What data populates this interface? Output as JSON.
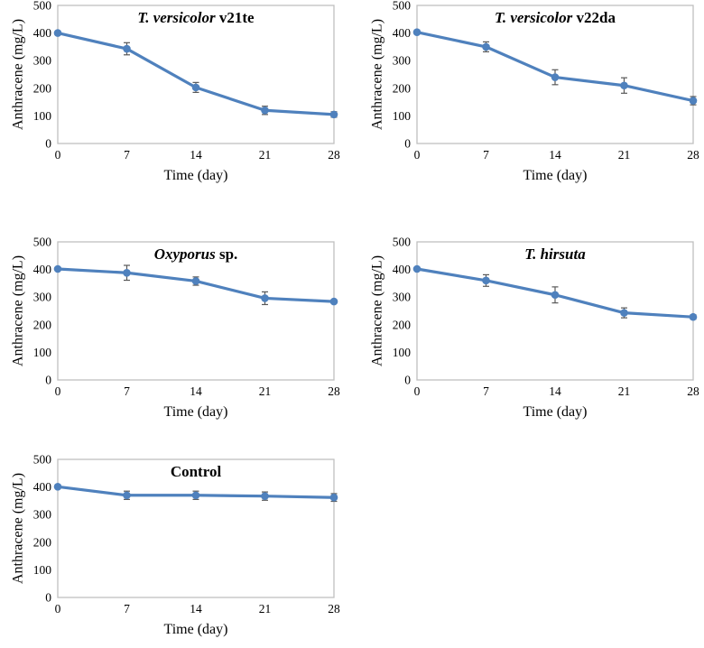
{
  "figure": {
    "description": "Anthracene degradation time-course panels",
    "colors": {
      "series_line": "#4F81BD",
      "marker_fill": "#4F81BD",
      "error_bar": "#595959",
      "axis_border": "#BFBFBF",
      "text": "#000000",
      "background": "#ffffff"
    },
    "shared": {
      "xlabel": "Time (day)",
      "ylabel": "Anthracene  (mg/L)",
      "x_ticks": [
        "0",
        "7",
        "14",
        "21",
        "28"
      ],
      "y_ticks": [
        "0",
        "100",
        "200",
        "300",
        "400",
        "500"
      ]
    }
  },
  "chart_data": [
    {
      "type": "line",
      "title": "T. versicolor v21te",
      "title_italic": "T. versicolor",
      "title_regular": " v21te",
      "x": [
        0,
        7,
        14,
        21,
        28
      ],
      "values": [
        400,
        343,
        203,
        120,
        105
      ],
      "errors": [
        0,
        22,
        18,
        15,
        10
      ],
      "xlabel": "Time (day)",
      "ylabel": "Anthracene  (mg/L)",
      "xlim": [
        0,
        28
      ],
      "ylim": [
        0,
        500
      ],
      "x_ticks": [
        0,
        7,
        14,
        21,
        28
      ],
      "y_ticks": [
        0,
        100,
        200,
        300,
        400,
        500
      ],
      "grid": false,
      "legend": false,
      "marker": "circle",
      "position": "top-left"
    },
    {
      "type": "line",
      "title": "T. versicolor v22da",
      "title_italic": "T. versicolor",
      "title_regular": " v22da",
      "x": [
        0,
        7,
        14,
        21,
        28
      ],
      "values": [
        403,
        350,
        240,
        210,
        155
      ],
      "errors": [
        0,
        18,
        27,
        28,
        15
      ],
      "xlabel": "Time (day)",
      "ylabel": "Anthracene  (mg/L)",
      "xlim": [
        0,
        28
      ],
      "ylim": [
        0,
        500
      ],
      "x_ticks": [
        0,
        7,
        14,
        21,
        28
      ],
      "y_ticks": [
        0,
        100,
        200,
        300,
        400,
        500
      ],
      "grid": false,
      "legend": false,
      "marker": "circle",
      "position": "top-right"
    },
    {
      "type": "line",
      "title": "Oxyporus sp.",
      "title_italic": "Oxyporus",
      "title_regular": " sp.",
      "x": [
        0,
        7,
        14,
        21,
        28
      ],
      "values": [
        402,
        388,
        358,
        296,
        284
      ],
      "errors": [
        0,
        27,
        15,
        23,
        6
      ],
      "xlabel": "Time (day)",
      "ylabel": "Anthracene  (mg/L)",
      "xlim": [
        0,
        28
      ],
      "ylim": [
        0,
        500
      ],
      "x_ticks": [
        0,
        7,
        14,
        21,
        28
      ],
      "y_ticks": [
        0,
        100,
        200,
        300,
        400,
        500
      ],
      "grid": false,
      "legend": false,
      "marker": "circle",
      "position": "middle-left"
    },
    {
      "type": "line",
      "title": "T. hirsuta",
      "title_italic": "T. hirsuta",
      "title_regular": "",
      "x": [
        0,
        7,
        14,
        21,
        28
      ],
      "values": [
        402,
        360,
        308,
        243,
        228
      ],
      "errors": [
        0,
        21,
        29,
        18,
        8
      ],
      "xlabel": "Time (day)",
      "ylabel": "Anthracene  (mg/L)",
      "xlim": [
        0,
        28
      ],
      "ylim": [
        0,
        500
      ],
      "x_ticks": [
        0,
        7,
        14,
        21,
        28
      ],
      "y_ticks": [
        0,
        100,
        200,
        300,
        400,
        500
      ],
      "grid": false,
      "legend": false,
      "marker": "circle",
      "position": "bottom-left"
    },
    {
      "type": "line",
      "title": "Control",
      "title_italic": "",
      "title_regular": "Control",
      "x": [
        0,
        7,
        14,
        21,
        28
      ],
      "values": [
        401,
        370,
        370,
        367,
        362
      ],
      "errors": [
        0,
        15,
        15,
        15,
        14
      ],
      "xlabel": "Time (day)",
      "ylabel": "Anthracene  (mg/L)",
      "xlim": [
        0,
        28
      ],
      "ylim": [
        0,
        500
      ],
      "x_ticks": [
        0,
        7,
        14,
        21,
        28
      ],
      "y_ticks": [
        0,
        100,
        200,
        300,
        400,
        500
      ],
      "grid": false,
      "legend": false,
      "marker": "circle",
      "position": "bottom-far-left"
    }
  ]
}
